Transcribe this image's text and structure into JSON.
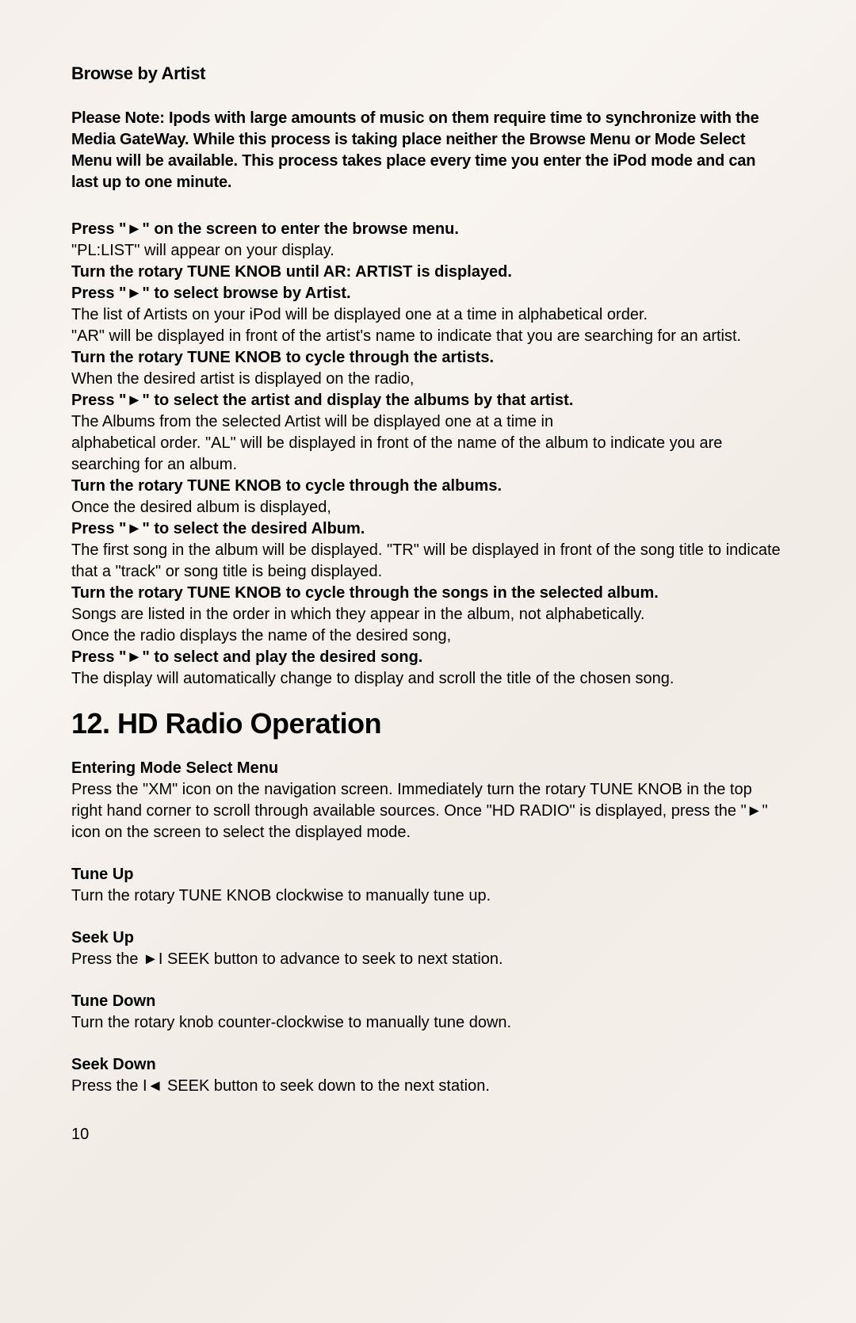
{
  "page": {
    "section1_heading": "Browse by Artist",
    "note": "Please Note: Ipods with large amounts of music on them require time to synchronize with the Media GateWay. While this process is taking place neither the Browse Menu or Mode Select Menu will be available. This process takes place every time you enter the iPod mode and can last up to one minute.",
    "step1_bold": "Press \"►\" on the screen to enter the browse menu.",
    "step1_plain": "\"PL:LIST\" will appear on your display.",
    "step2_bold": "Turn the rotary TUNE KNOB until AR: ARTIST is displayed.",
    "step3_bold": "Press \"►\" to select browse by Artist.",
    "step3_plain1": "The list of Artists on your iPod will be displayed one at a time in alphabetical order.",
    "step3_plain2": "\"AR\" will be displayed in front of the artist's name to indicate that you are searching for an artist.",
    "step4_bold": "Turn the rotary TUNE KNOB to cycle through the artists.",
    "step4_plain": "When the desired artist is displayed on the radio,",
    "step5_bold": "Press \"►\" to select the artist and display the albums by that artist.",
    "step5_plain1": "The Albums from the selected Artist will be displayed one at a time in",
    "step5_plain2": "alphabetical order. \"AL\" will be displayed in front of the name of the album to indicate you are searching for an album.",
    "step6_bold": "Turn the rotary TUNE KNOB to cycle through the albums.",
    "step6_plain": "Once the desired album is displayed,",
    "step7_bold": "Press \"►\" to select the desired Album.",
    "step7_plain": "The first song in the album will be displayed. \"TR\" will be displayed in front of the song title to indicate that a \"track\" or song title is being displayed.",
    "step8_bold": "Turn the rotary TUNE KNOB to cycle through the songs in the selected album.",
    "step8_plain1": "Songs are listed in the order in which they appear in the album, not alphabetically.",
    "step8_plain2": "Once the radio displays the name of the desired song,",
    "step9_bold": "Press \"►\" to select and play the desired song.",
    "step9_plain": "The display will automatically change to display and scroll the title of the chosen song.",
    "main_heading": "12. HD Radio Operation",
    "entering_label": "Entering Mode Select Menu",
    "entering_p1a": "Press the  ",
    "entering_p1b": "\"XM\"",
    "entering_p1c": " icon on the navigation screen. Immediately turn the rotary ",
    "entering_p1d": "TUNE KNOB",
    "entering_p1e": " in the top right hand corner to scroll through available sources. Once \"HD RADIO\" is displayed, press the ",
    "entering_p1f": "\"►\"",
    "entering_p1g": " icon on the screen to select the displayed mode.",
    "tuneup_label": "Tune Up",
    "tuneup_t1": "Turn the rotary ",
    "tuneup_t2": "TUNE KNOB",
    "tuneup_t3": " clockwise to manually tune up.",
    "seekup_label": "Seek Up",
    "seekup_t1": "Press the ",
    "seekup_t2": "►I SEEK",
    "seekup_t3": " button to advance to seek to next station.",
    "tunedown_label": "Tune Down",
    "tunedown_text": "Turn the rotary knob counter-clockwise to manually tune down.",
    "seekdown_label": "Seek Down",
    "seekdown_t1": "Press the ",
    "seekdown_t2": "I◄ SEEK",
    "seekdown_t3": " button to seek down to the next station.",
    "page_number": "10"
  }
}
